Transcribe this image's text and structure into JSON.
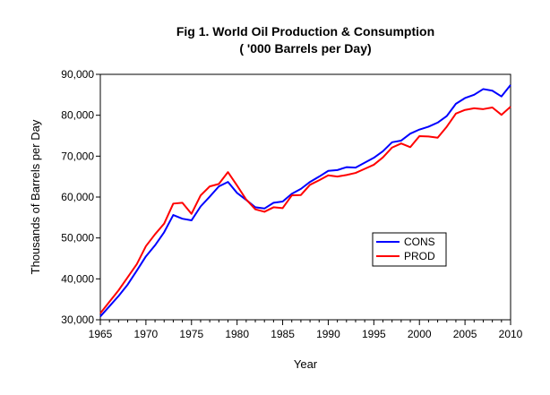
{
  "chart_data": {
    "type": "line",
    "title": "Fig 1. World Oil Production & Consumption",
    "subtitle": "( '000 Barrels per Day)",
    "xlabel": "Year",
    "ylabel": "Thousands of Barrels per Day",
    "xlim": [
      1965,
      2010
    ],
    "ylim": [
      30000,
      90000
    ],
    "x_ticks": [
      1965,
      1970,
      1975,
      1980,
      1985,
      1990,
      1995,
      2000,
      2005,
      2010
    ],
    "y_ticks": [
      30000,
      40000,
      50000,
      60000,
      70000,
      80000,
      90000
    ],
    "y_tick_labels": [
      "30,000",
      "40,000",
      "50,000",
      "60,000",
      "70,000",
      "80,000",
      "90,000"
    ],
    "grid": false,
    "legend_position": "center-right",
    "x": [
      1965,
      1966,
      1967,
      1968,
      1969,
      1970,
      1971,
      1972,
      1973,
      1974,
      1975,
      1976,
      1977,
      1978,
      1979,
      1980,
      1981,
      1982,
      1983,
      1984,
      1985,
      1986,
      1987,
      1988,
      1989,
      1990,
      1991,
      1992,
      1993,
      1994,
      1995,
      1996,
      1997,
      1998,
      1999,
      2000,
      2001,
      2002,
      2003,
      2004,
      2005,
      2006,
      2007,
      2008,
      2009,
      2010
    ],
    "series": [
      {
        "name": "CONS",
        "color": "#0000ff",
        "values": [
          30800,
          33300,
          35800,
          38600,
          42000,
          45500,
          48200,
          51400,
          55600,
          54700,
          54300,
          57700,
          60100,
          62600,
          63700,
          61000,
          59300,
          57500,
          57200,
          58600,
          58900,
          60800,
          62000,
          63700,
          65000,
          66400,
          66600,
          67300,
          67200,
          68400,
          69600,
          71200,
          73400,
          73800,
          75500,
          76500,
          77200,
          78200,
          79800,
          82800,
          84200,
          85000,
          86400,
          86000,
          84600,
          87400
        ]
      },
      {
        "name": "PROD",
        "color": "#ff0000",
        "values": [
          31600,
          34400,
          37200,
          40400,
          43600,
          48000,
          50900,
          53500,
          58400,
          58600,
          55900,
          60400,
          62600,
          63200,
          66100,
          62800,
          59400,
          57000,
          56400,
          57500,
          57300,
          60400,
          60500,
          63000,
          64100,
          65300,
          65000,
          65400,
          65900,
          66900,
          67900,
          69700,
          72100,
          73100,
          72200,
          74900,
          74800,
          74500,
          77200,
          80400,
          81300,
          81700,
          81500,
          81900,
          80100,
          82100
        ]
      }
    ]
  }
}
